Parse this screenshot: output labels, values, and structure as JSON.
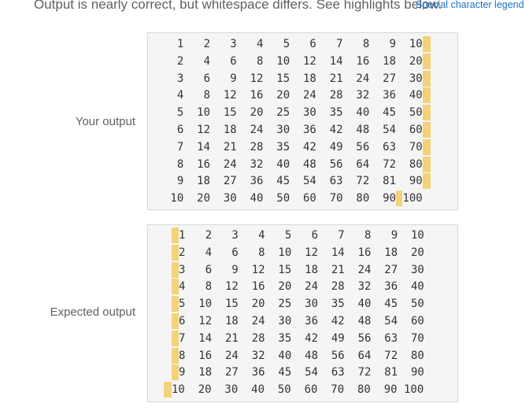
{
  "header": {
    "message": "Output is nearly correct, but whitespace differs. See highlights below.",
    "legend_link": "Special character legend"
  },
  "your_output": {
    "label": "Your output",
    "lines": [
      "  1   2   3   4   5   6   7   8   9  10",
      "  2   4   6   8  10  12  14  16  18  20",
      "  3   6   9  12  15  18  21  24  27  30",
      "  4   8  12  16  20  24  28  32  36  40",
      "  5  10  15  20  25  30  35  40  45  50",
      "  6  12  18  24  30  36  42  48  54  60",
      "  7  14  21  28  35  42  49  56  63  70",
      "  8  16  24  32  40  48  56  64  72  80",
      "  9  18  27  36  45  54  63  72  81  90",
      " 10  20  30  40  50  60  70  80  90 100"
    ]
  },
  "expected_output": {
    "label": "Expected output",
    "lines": [
      "1   2   3   4   5   6   7   8   9  10",
      "2   4   6   8  10  12  14  16  18  20",
      "3   6   9  12  15  18  21  24  27  30",
      "4   8  12  16  20  24  28  32  36  40",
      "5  10  15  20  25  30  35  40  45  50",
      "6  12  18  24  30  36  42  48  54  60",
      "7  14  21  28  35  42  49  56  63  70",
      "8  16  24  32  40  48  56  64  72  80",
      "9  18  27  36  45  54  63  72  81  90",
      "10  20  30  40  50  60  70  80  90 100"
    ]
  },
  "colors": {
    "highlight": "#f2d27a",
    "box_background": "#f5f5f5",
    "link": "#1a73c8",
    "text": "#616161"
  }
}
